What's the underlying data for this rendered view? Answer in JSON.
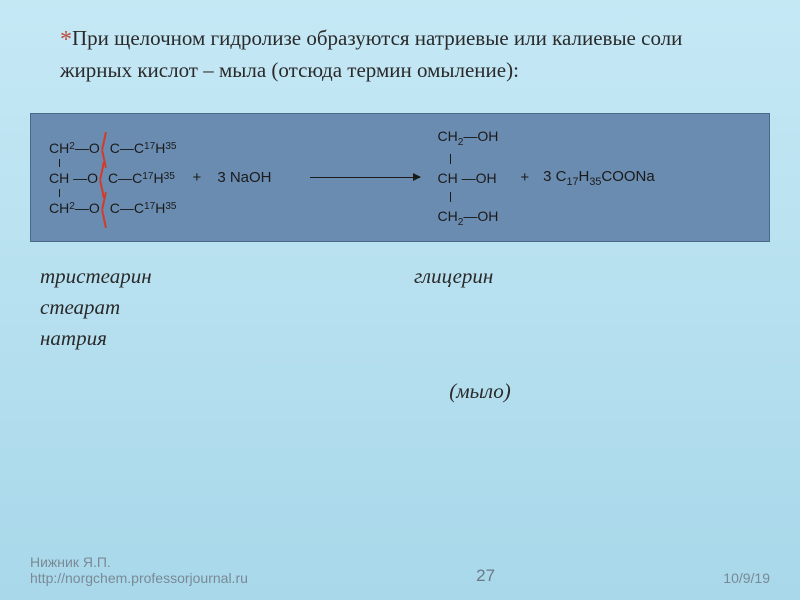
{
  "intro_text": "При щелочном гидролизе образуются натриевые или калиевые соли жирных кислот – мыла (отсюда термин омыление):",
  "reaction": {
    "chain_left": "CH",
    "chain_left2": "CH",
    "sub2": "2",
    "o_link": "O",
    "c_atom": "C",
    "tail": "C",
    "tail_sub1": "17",
    "tail_h": "H",
    "tail_sub2": "35",
    "o_top": "O",
    "plus": "+",
    "reagent_coeff": "3",
    "reagent": "NaOH",
    "glyc_ch2": "CH",
    "glyc_oh": "OH",
    "product_coeff": "3",
    "product": "C",
    "product_sub1": "17",
    "product_h": "H",
    "product_sub2": "35",
    "product_tail": "COONa"
  },
  "labels": {
    "reactant": "тристеарин",
    "glycerol": "глицерин",
    "stearate": "стеарат",
    "sodium": "натрия",
    "soap": "(мыло)"
  },
  "footer": {
    "author": "Нижник Я.П.",
    "url": "http://norgchem.professorjournal.ru",
    "page": "27",
    "date": "10/9/19"
  },
  "colors": {
    "bg_top": "#c5e8f5",
    "bg_bottom": "#a8d8ea",
    "box": "#6a8cb0",
    "cut": "#d43a2a",
    "text": "#2a2a2a",
    "footer": "#7a8a95"
  }
}
